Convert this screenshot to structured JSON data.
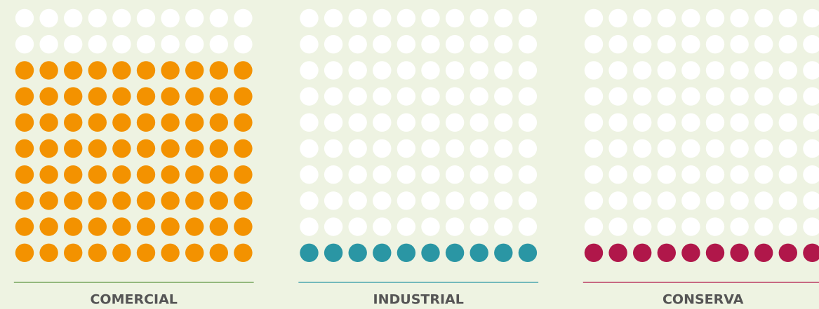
{
  "chart_data": {
    "type": "waffle",
    "categories": [
      "COMERCIAL",
      "INDUSTRIAL",
      "CONSERVA"
    ],
    "values": [
      80,
      10,
      10
    ],
    "colors": [
      "#f39200",
      "#2a96a4",
      "#b0174a"
    ],
    "rule_colors": [
      "#5e9442",
      "#2a96a4",
      "#b0174a"
    ],
    "empty_color": "#ffffff"
  }
}
